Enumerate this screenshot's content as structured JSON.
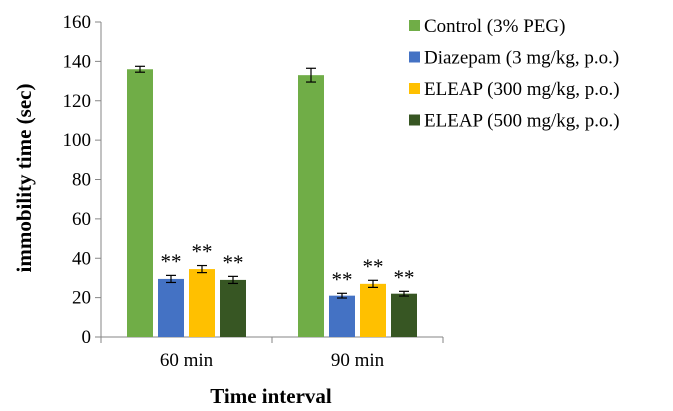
{
  "chart_data": {
    "type": "bar",
    "categories": [
      "60 min",
      "90 min"
    ],
    "series": [
      {
        "name": "Control (3% PEG)",
        "color": "#70ad47",
        "values": [
          136,
          133
        ],
        "errors": [
          1.5,
          3.5
        ],
        "annotations": [
          "",
          ""
        ]
      },
      {
        "name": "Diazepam (3 mg/kg, p.o.)",
        "color": "#4472c4",
        "values": [
          29.5,
          21
        ],
        "errors": [
          1.8,
          1.2
        ],
        "annotations": [
          "**",
          "**"
        ]
      },
      {
        "name": "ELEAP (300 mg/kg, p.o.)",
        "color": "#ffc000",
        "values": [
          34.5,
          27
        ],
        "errors": [
          1.8,
          1.8
        ],
        "annotations": [
          "**",
          "**"
        ]
      },
      {
        "name": "ELEAP (500 mg/kg, p.o.)",
        "color": "#375623",
        "values": [
          29,
          22
        ],
        "errors": [
          1.8,
          1.2
        ],
        "annotations": [
          "**",
          "**"
        ]
      }
    ],
    "xlabel": "Time interval",
    "ylabel": "immobility time (sec)",
    "ylim": [
      0,
      160
    ],
    "yticks": [
      "0",
      "20",
      "40",
      "60",
      "80",
      "100",
      "120",
      "140",
      "160"
    ],
    "grid": false,
    "legend_position": "right"
  }
}
